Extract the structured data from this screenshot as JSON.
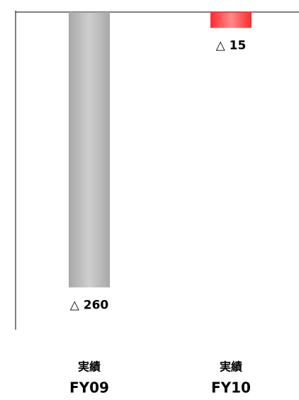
{
  "chart_data": {
    "type": "bar",
    "categories": [
      [
        "実績",
        "FY09"
      ],
      [
        "実績",
        "FY10"
      ]
    ],
    "values": [
      -260,
      -15
    ],
    "value_labels": [
      "△ 260",
      "△ 15"
    ],
    "colors": [
      "#a8a8a8",
      "#ff2a2a"
    ],
    "ylim": [
      -300,
      0
    ]
  }
}
